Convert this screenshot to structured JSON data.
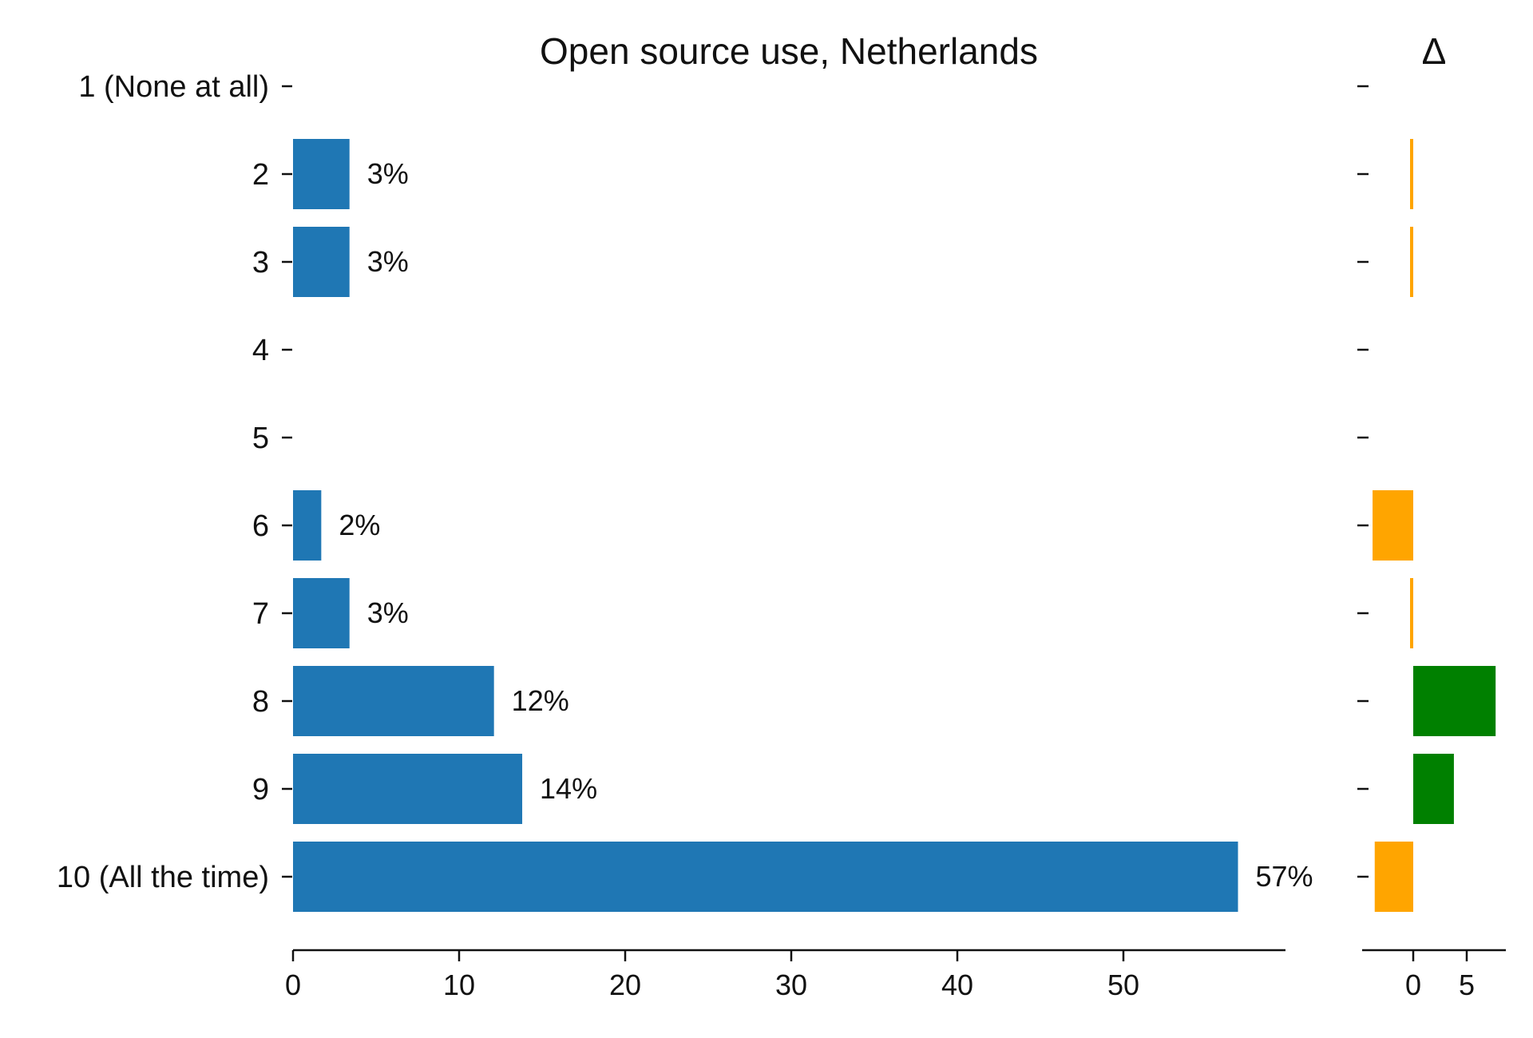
{
  "chart_data": [
    {
      "type": "bar",
      "orientation": "horizontal",
      "title": "Open source use, Netherlands",
      "categories": [
        "1 (None at all)",
        "2",
        "3",
        "4",
        "5",
        "6",
        "7",
        "8",
        "9",
        "10 (All the time)"
      ],
      "values": [
        0,
        3.4,
        3.4,
        0,
        0,
        1.7,
        3.4,
        12.1,
        13.8,
        56.9
      ],
      "data_labels": [
        "",
        "3%",
        "3%",
        "",
        "",
        "2%",
        "3%",
        "12%",
        "14%",
        "57%"
      ],
      "x_ticks": [
        "0",
        "10",
        "20",
        "30",
        "40",
        "50"
      ],
      "xlim": [
        0,
        60
      ],
      "bar_color": "#1f77b4",
      "xlabel": "",
      "ylabel": "",
      "grid": false
    },
    {
      "type": "bar",
      "orientation": "horizontal",
      "title": "Δ",
      "categories": [
        "1 (None at all)",
        "2",
        "3",
        "4",
        "5",
        "6",
        "7",
        "8",
        "9",
        "10 (All the time)"
      ],
      "values": [
        0,
        -0.2,
        -0.2,
        0,
        0,
        -3.8,
        -0.2,
        7.7,
        3.8,
        -3.6
      ],
      "x_ticks": [
        "0",
        "5"
      ],
      "xlim": [
        -4.5,
        8.5
      ],
      "positive_color": "#008000",
      "negative_color": "#ffa500",
      "grid": false
    }
  ]
}
